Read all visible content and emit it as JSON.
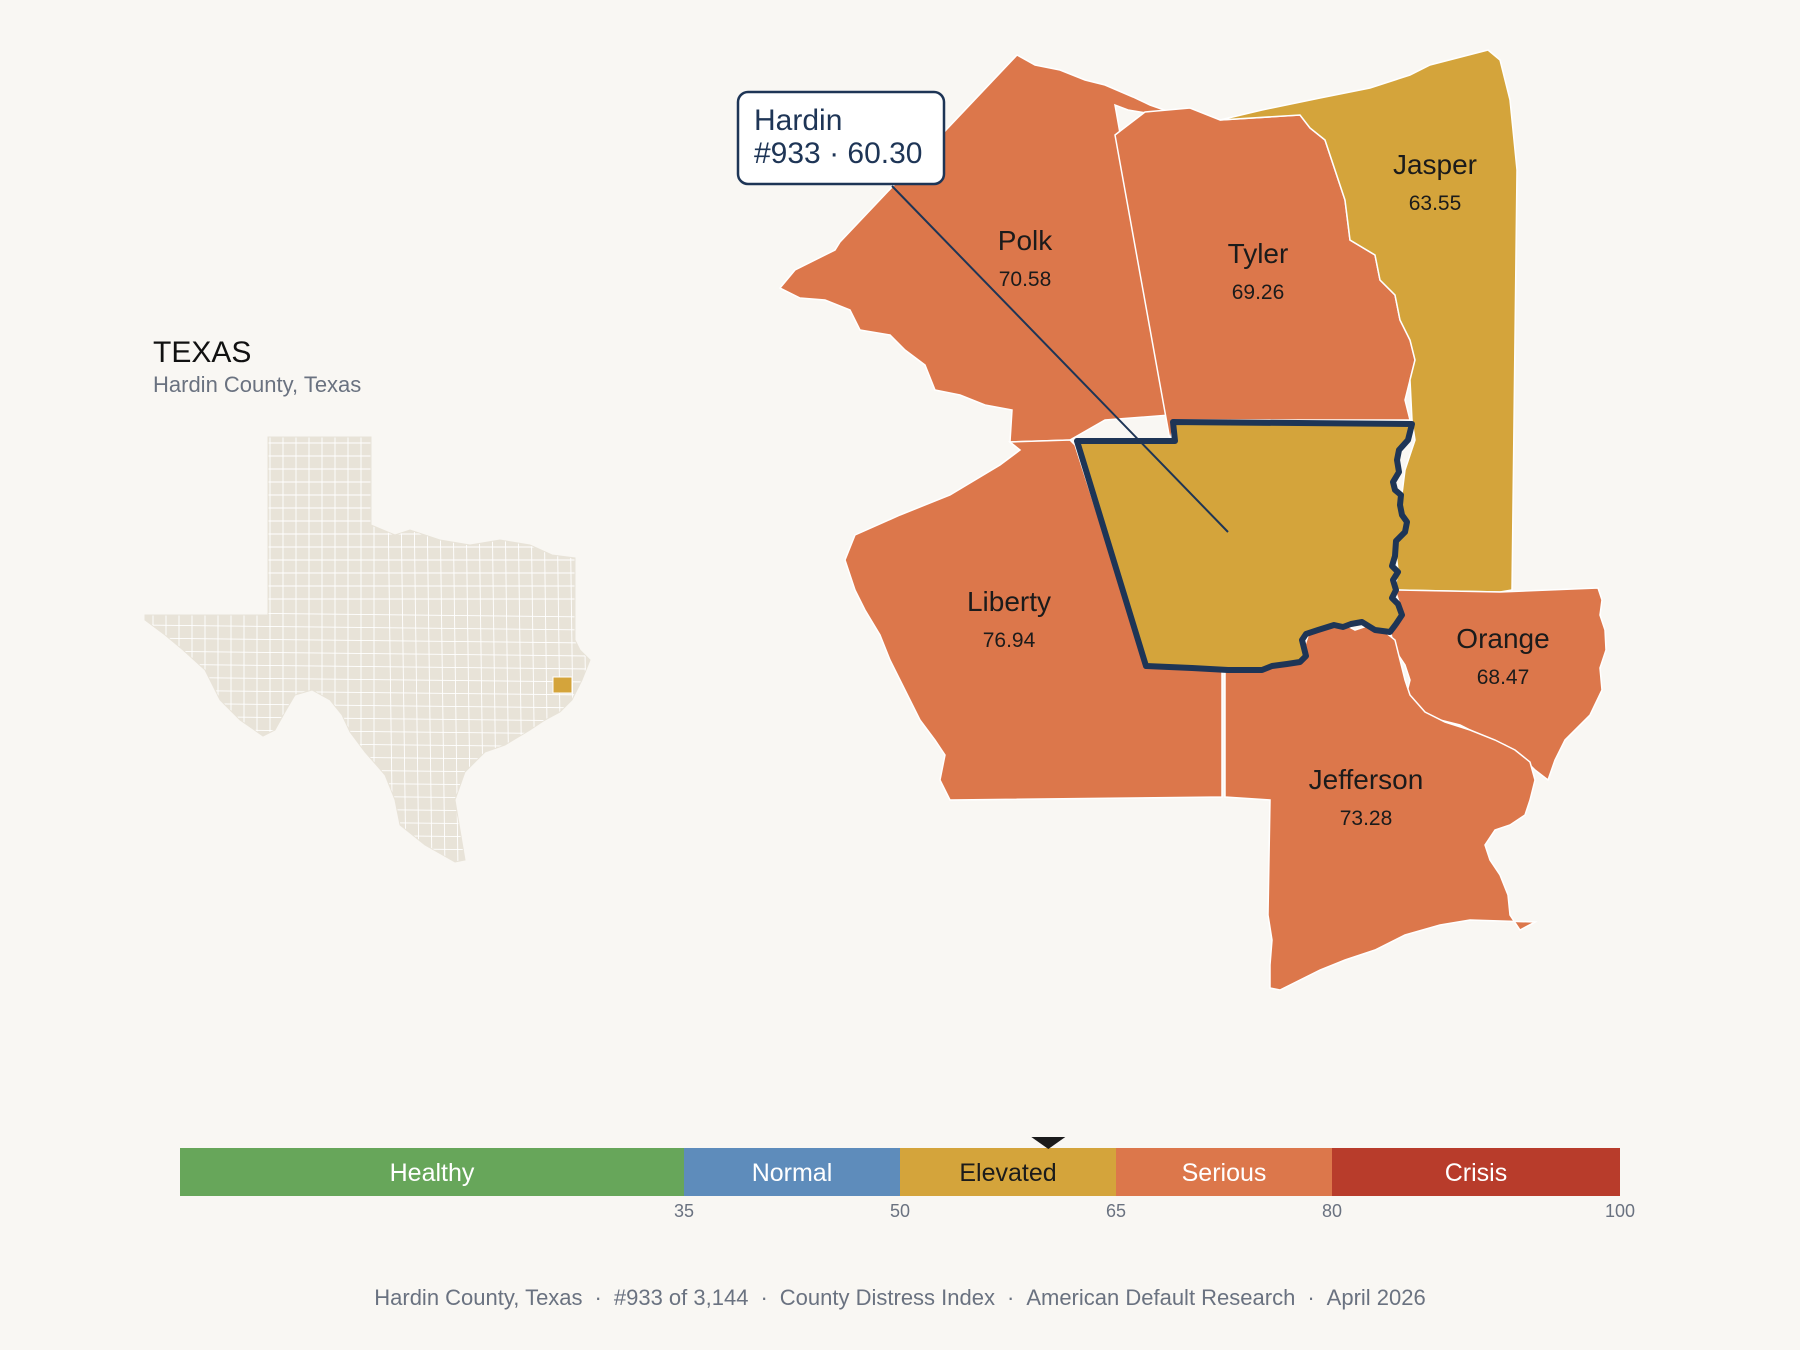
{
  "state": {
    "title": "TEXAS",
    "subtitle": "Hardin County, Texas"
  },
  "focus_county": {
    "name": "Hardin",
    "rank": "#933",
    "score": "60.30",
    "band": "Elevated",
    "color": "#d4a43b",
    "outline_color": "#1e3556"
  },
  "callout": {
    "line1": "Hardin",
    "line2": "#933 · 60.30"
  },
  "neighbors": [
    {
      "name": "Polk",
      "score": "70.58",
      "color": "#dc774b"
    },
    {
      "name": "Tyler",
      "score": "69.26",
      "color": "#dc774b"
    },
    {
      "name": "Jasper",
      "score": "63.55",
      "color": "#d4a43b"
    },
    {
      "name": "Liberty",
      "score": "76.94",
      "color": "#dc774b"
    },
    {
      "name": "Orange",
      "score": "68.47",
      "color": "#dc774b"
    },
    {
      "name": "Jefferson",
      "score": "73.28",
      "color": "#dc774b"
    }
  ],
  "legend": {
    "bands": [
      {
        "label": "Healthy",
        "from": 0,
        "to": 35,
        "color": "#67a65a",
        "text_color": "#ffffff"
      },
      {
        "label": "Normal",
        "from": 35,
        "to": 50,
        "color": "#5e8cbb",
        "text_color": "#ffffff"
      },
      {
        "label": "Elevated",
        "from": 50,
        "to": 65,
        "color": "#d4a43b",
        "text_color": "#1b1b1b"
      },
      {
        "label": "Serious",
        "from": 65,
        "to": 80,
        "color": "#dc774b",
        "text_color": "#ffffff"
      },
      {
        "label": "Crisis",
        "from": 80,
        "to": 100,
        "color": "#b83c2b",
        "text_color": "#ffffff"
      }
    ],
    "ticks": [
      "35",
      "50",
      "65",
      "80",
      "100"
    ],
    "marker_value": 60.3
  },
  "footer": {
    "items": [
      "Hardin County, Texas",
      "#933 of 3,144",
      "County Distress Index",
      "American Default Research",
      "April 2026"
    ]
  }
}
